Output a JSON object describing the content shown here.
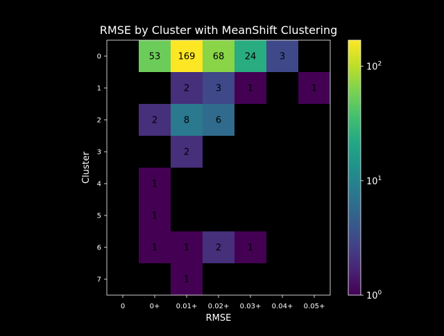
{
  "chart_data": {
    "type": "heatmap",
    "title": "RMSE by Cluster with MeanShift Clustering",
    "xlabel": "RMSE",
    "ylabel": "Cluster",
    "x_categories": [
      "0",
      "0+",
      "0.01+",
      "0.02+",
      "0.03+",
      "0.04+",
      "0.05+"
    ],
    "y_categories": [
      "0",
      "1",
      "2",
      "3",
      "4",
      "5",
      "6",
      "7"
    ],
    "values": [
      [
        null,
        53,
        169,
        68,
        24,
        3,
        null
      ],
      [
        null,
        null,
        2,
        3,
        1,
        null,
        1
      ],
      [
        null,
        2,
        8,
        6,
        null,
        null,
        null
      ],
      [
        null,
        null,
        2,
        null,
        null,
        null,
        null
      ],
      [
        null,
        1,
        null,
        null,
        null,
        null,
        null
      ],
      [
        null,
        1,
        null,
        null,
        null,
        null,
        null
      ],
      [
        null,
        1,
        1,
        2,
        1,
        null,
        null
      ],
      [
        null,
        null,
        1,
        null,
        null,
        null,
        null
      ]
    ],
    "colorbar": {
      "scale": "log",
      "colormap": "viridis",
      "range": [
        1,
        169
      ],
      "ticks": [
        {
          "value": 1,
          "label": "10",
          "exp": "0"
        },
        {
          "value": 10,
          "label": "10",
          "exp": "1"
        },
        {
          "value": 100,
          "label": "10",
          "exp": "2"
        }
      ]
    },
    "grid": false,
    "background_color": "#000000",
    "text_color": "#ffffff"
  }
}
